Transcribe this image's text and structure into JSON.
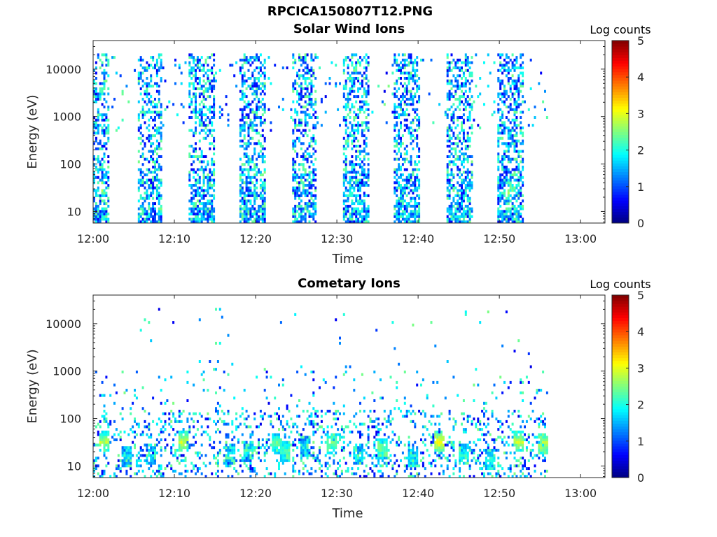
{
  "figure": {
    "title": "RPCICA150807T12.PNG"
  },
  "colors": {
    "colormap": "jet",
    "background": "#ffffff",
    "axis": "#262626"
  },
  "chart_data": [
    {
      "type": "heatmap",
      "title": "Solar Wind Ions",
      "xlabel": "Time",
      "ylabel": "Energy (eV)",
      "colorbar_label": "Log counts",
      "xlim": [
        "12:00",
        "13:03"
      ],
      "x_ticks": [
        "12:00",
        "12:10",
        "12:20",
        "12:30",
        "12:40",
        "12:50",
        "13:00"
      ],
      "y_scale": "log",
      "ylim": [
        5.7,
        40000
      ],
      "y_ticks": [
        10,
        100,
        1000,
        10000
      ],
      "y_tick_labels": [
        "10",
        "100",
        "1000",
        "10000"
      ],
      "clim": [
        0,
        5
      ],
      "colorbar_ticks": [
        "0",
        "1",
        "2",
        "3",
        "4",
        "5"
      ],
      "data_range_minutes": [
        0,
        56
      ],
      "bursts": [
        {
          "t_start": 0.0,
          "t_end": 2.0,
          "peak_log_counts": 2.0
        },
        {
          "t_start": 5.3,
          "t_end": 8.5,
          "peak_log_counts": 1.2
        },
        {
          "t_start": 11.6,
          "t_end": 14.8,
          "peak_log_counts": 1.2
        },
        {
          "t_start": 18.0,
          "t_end": 21.2,
          "peak_log_counts": 1.2
        },
        {
          "t_start": 24.5,
          "t_end": 27.3,
          "peak_log_counts": 1.2
        },
        {
          "t_start": 30.7,
          "t_end": 33.8,
          "peak_log_counts": 1.2
        },
        {
          "t_start": 37.0,
          "t_end": 40.2,
          "peak_log_counts": 1.2
        },
        {
          "t_start": 43.4,
          "t_end": 46.6,
          "peak_log_counts": 1.2
        },
        {
          "t_start": 49.7,
          "t_end": 53.0,
          "peak_log_counts": 2.3
        }
      ]
    },
    {
      "type": "heatmap",
      "title": "Cometary Ions",
      "xlabel": "Time",
      "ylabel": "Energy (eV)",
      "colorbar_label": "Log counts",
      "xlim": [
        "12:00",
        "13:03"
      ],
      "x_ticks": [
        "12:00",
        "12:10",
        "12:20",
        "12:30",
        "12:40",
        "12:50",
        "13:00"
      ],
      "y_scale": "log",
      "ylim": [
        5.7,
        40000
      ],
      "y_ticks": [
        10,
        100,
        1000,
        10000
      ],
      "y_tick_labels": [
        "10",
        "100",
        "1000",
        "10000"
      ],
      "clim": [
        0,
        5
      ],
      "colorbar_ticks": [
        "0",
        "1",
        "2",
        "3",
        "4",
        "5"
      ],
      "data_range_minutes": [
        0,
        56
      ],
      "hot_spots": [
        {
          "t": 1.3,
          "energy_eV": 30,
          "log_counts": 3.0
        },
        {
          "t": 4.0,
          "energy_eV": 15,
          "log_counts": 2.0
        },
        {
          "t": 7.0,
          "energy_eV": 16,
          "log_counts": 2.0
        },
        {
          "t": 11.0,
          "energy_eV": 30,
          "log_counts": 3.1
        },
        {
          "t": 16.8,
          "energy_eV": 16,
          "log_counts": 2.0
        },
        {
          "t": 19.0,
          "energy_eV": 20,
          "log_counts": 2.0
        },
        {
          "t": 22.5,
          "energy_eV": 28,
          "log_counts": 2.6
        },
        {
          "t": 23.5,
          "energy_eV": 20,
          "log_counts": 2.5
        },
        {
          "t": 26.0,
          "energy_eV": 25,
          "log_counts": 1.8
        },
        {
          "t": 29.3,
          "energy_eV": 28,
          "log_counts": 2.7
        },
        {
          "t": 32.5,
          "energy_eV": 16,
          "log_counts": 2.0
        },
        {
          "t": 35.5,
          "energy_eV": 22,
          "log_counts": 2.6
        },
        {
          "t": 39.3,
          "energy_eV": 15,
          "log_counts": 2.0
        },
        {
          "t": 42.5,
          "energy_eV": 30,
          "log_counts": 3.4
        },
        {
          "t": 45.5,
          "energy_eV": 16,
          "log_counts": 2.2
        },
        {
          "t": 48.7,
          "energy_eV": 13,
          "log_counts": 2.3
        },
        {
          "t": 52.3,
          "energy_eV": 30,
          "log_counts": 3.1
        },
        {
          "t": 55.2,
          "energy_eV": 28,
          "log_counts": 3.2
        }
      ]
    }
  ]
}
